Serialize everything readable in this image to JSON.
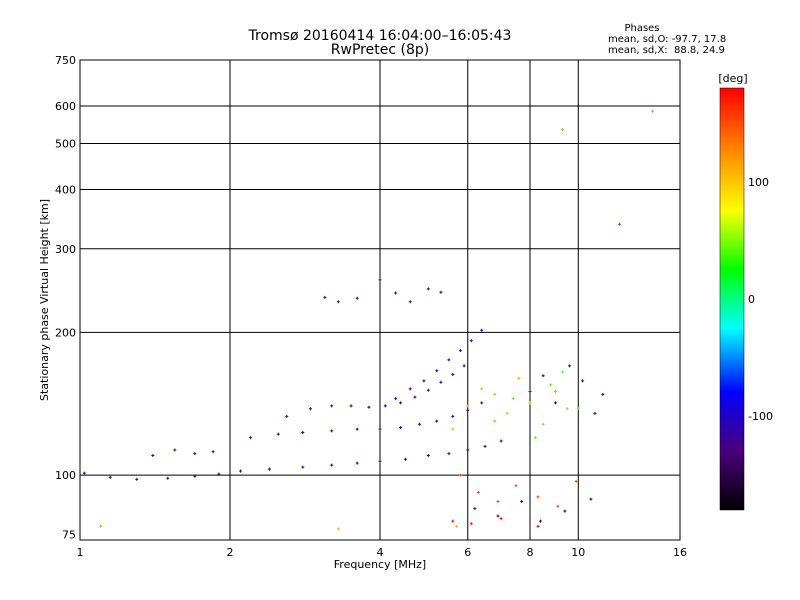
{
  "chart_data": {
    "type": "scatter",
    "title": "Tromsø 20160414 16:04:00–16:05:43",
    "subtitle": "RwPretec (8p)",
    "phase_stats": {
      "heading": "Phases",
      "line_o": "mean, sd,O: -97.7, 17.8",
      "line_x": "mean, sd,X:  88.8, 24.9"
    },
    "xlabel": "Frequency [MHz]",
    "ylabel": "Stationary phase Virtual Height [km]",
    "x_scale": "log",
    "y_scale": "log",
    "xlim": [
      1,
      16
    ],
    "ylim": [
      73,
      750
    ],
    "x_ticks": [
      1,
      2,
      4,
      6,
      8,
      10,
      16
    ],
    "x_tick_labels": [
      "1",
      "2",
      "4",
      "6",
      "8",
      "10",
      "16"
    ],
    "y_ticks": [
      75,
      100,
      200,
      300,
      400,
      500,
      600,
      750
    ],
    "y_tick_labels": [
      "75",
      "100",
      "200",
      "300",
      "400",
      "500",
      "600",
      "750"
    ],
    "grid": true,
    "colorbar": {
      "label": "[deg]",
      "range": [
        -180,
        180
      ],
      "ticks": [
        100,
        0,
        -100
      ],
      "tick_labels": [
        "100",
        "0",
        "-100"
      ],
      "colors": [
        "#000000",
        "#4b007a",
        "#0000ff",
        "#00ffff",
        "#00ff00",
        "#ffff00",
        "#ff8000",
        "#ff0000"
      ]
    },
    "traces": [
      {
        "name": "",
        "phase": -110,
        "x": [
          1.02,
          1.15,
          1.3,
          1.5,
          1.7,
          1.9,
          2.1,
          2.4,
          2.8,
          3.2,
          3.6,
          4.0,
          4.5,
          5.0,
          5.5,
          6.0,
          6.5,
          7.0
        ],
        "y": [
          101,
          99,
          98,
          98.5,
          99.5,
          100.5,
          102,
          103,
          104,
          105,
          106,
          107,
          108,
          110,
          111,
          113,
          115,
          118
        ]
      },
      {
        "name": "",
        "phase": -105,
        "x": [
          2.2,
          2.5,
          2.8,
          3.2,
          3.6,
          4.0,
          4.4,
          4.8,
          5.2,
          5.6,
          6.0,
          6.4
        ],
        "y": [
          120,
          122,
          123,
          124,
          125,
          125,
          126,
          128,
          130,
          133,
          137,
          142
        ]
      },
      {
        "name": "",
        "phase": -100,
        "x": [
          2.6,
          2.9,
          3.2,
          3.5,
          3.8,
          4.1,
          4.4,
          4.7,
          5.0,
          5.3,
          5.6,
          5.9
        ],
        "y": [
          133,
          138,
          140,
          140,
          139,
          140,
          142,
          146,
          151,
          157,
          163,
          170
        ]
      },
      {
        "name": "",
        "phase": -95,
        "x": [
          4.3,
          4.6,
          4.9,
          5.2,
          5.5,
          5.8,
          6.1,
          6.4
        ],
        "y": [
          145,
          152,
          158,
          166,
          175,
          183,
          192,
          202
        ]
      },
      {
        "name": "",
        "phase": -110,
        "x": [
          1.4,
          1.55,
          1.7,
          1.85
        ],
        "y": [
          110,
          113,
          111,
          112
        ]
      },
      {
        "name": "",
        "phase": -105,
        "x": [
          3.1,
          3.3,
          3.6,
          4.0,
          4.3,
          4.6,
          5.0,
          5.3
        ],
        "y": [
          237,
          232,
          236,
          258,
          242,
          232,
          247,
          243
        ]
      },
      {
        "name": "",
        "phase": 110,
        "x": [
          5.6,
          6.0,
          6.4,
          6.8,
          7.2,
          7.6,
          8.0,
          8.5,
          9.0,
          9.5
        ],
        "y": [
          125,
          140,
          152,
          148,
          135,
          160,
          142,
          128,
          150,
          138
        ]
      },
      {
        "name": "",
        "phase": 40,
        "x": [
          6.8,
          7.4,
          8.2,
          8.8,
          9.3,
          10.0
        ],
        "y": [
          130,
          145,
          120,
          155,
          165,
          138
        ]
      },
      {
        "name": "",
        "phase": -110,
        "x": [
          8.0,
          8.5,
          9.0,
          9.6,
          10.2,
          10.8,
          11.2
        ],
        "y": [
          150,
          162,
          142,
          170,
          158,
          135,
          148
        ]
      },
      {
        "name": "",
        "phase": 150,
        "x": [
          5.8,
          6.3,
          6.9,
          7.5,
          8.3,
          9.1,
          9.9
        ],
        "y": [
          100,
          92,
          88,
          95,
          90,
          86,
          97
        ]
      },
      {
        "name": "",
        "phase": -120,
        "x": [
          6.2,
          6.9,
          7.7,
          8.4,
          9.4,
          10.6
        ],
        "y": [
          85,
          82,
          88,
          80,
          84,
          89
        ]
      },
      {
        "name": "",
        "phase": 175,
        "x": [
          5.6,
          6.1,
          7.0,
          8.3
        ],
        "y": [
          80,
          79,
          81,
          78
        ]
      },
      {
        "name": "",
        "phase": 120,
        "x": [
          9.3,
          14.1
        ],
        "y": [
          535,
          585
        ]
      },
      {
        "name": "",
        "phase": 160,
        "x": [
          12.1
        ],
        "y": [
          338
        ]
      },
      {
        "name": "",
        "phase": 110,
        "x": [
          1.1,
          3.3,
          5.7
        ],
        "y": [
          78,
          77,
          78
        ]
      }
    ]
  }
}
